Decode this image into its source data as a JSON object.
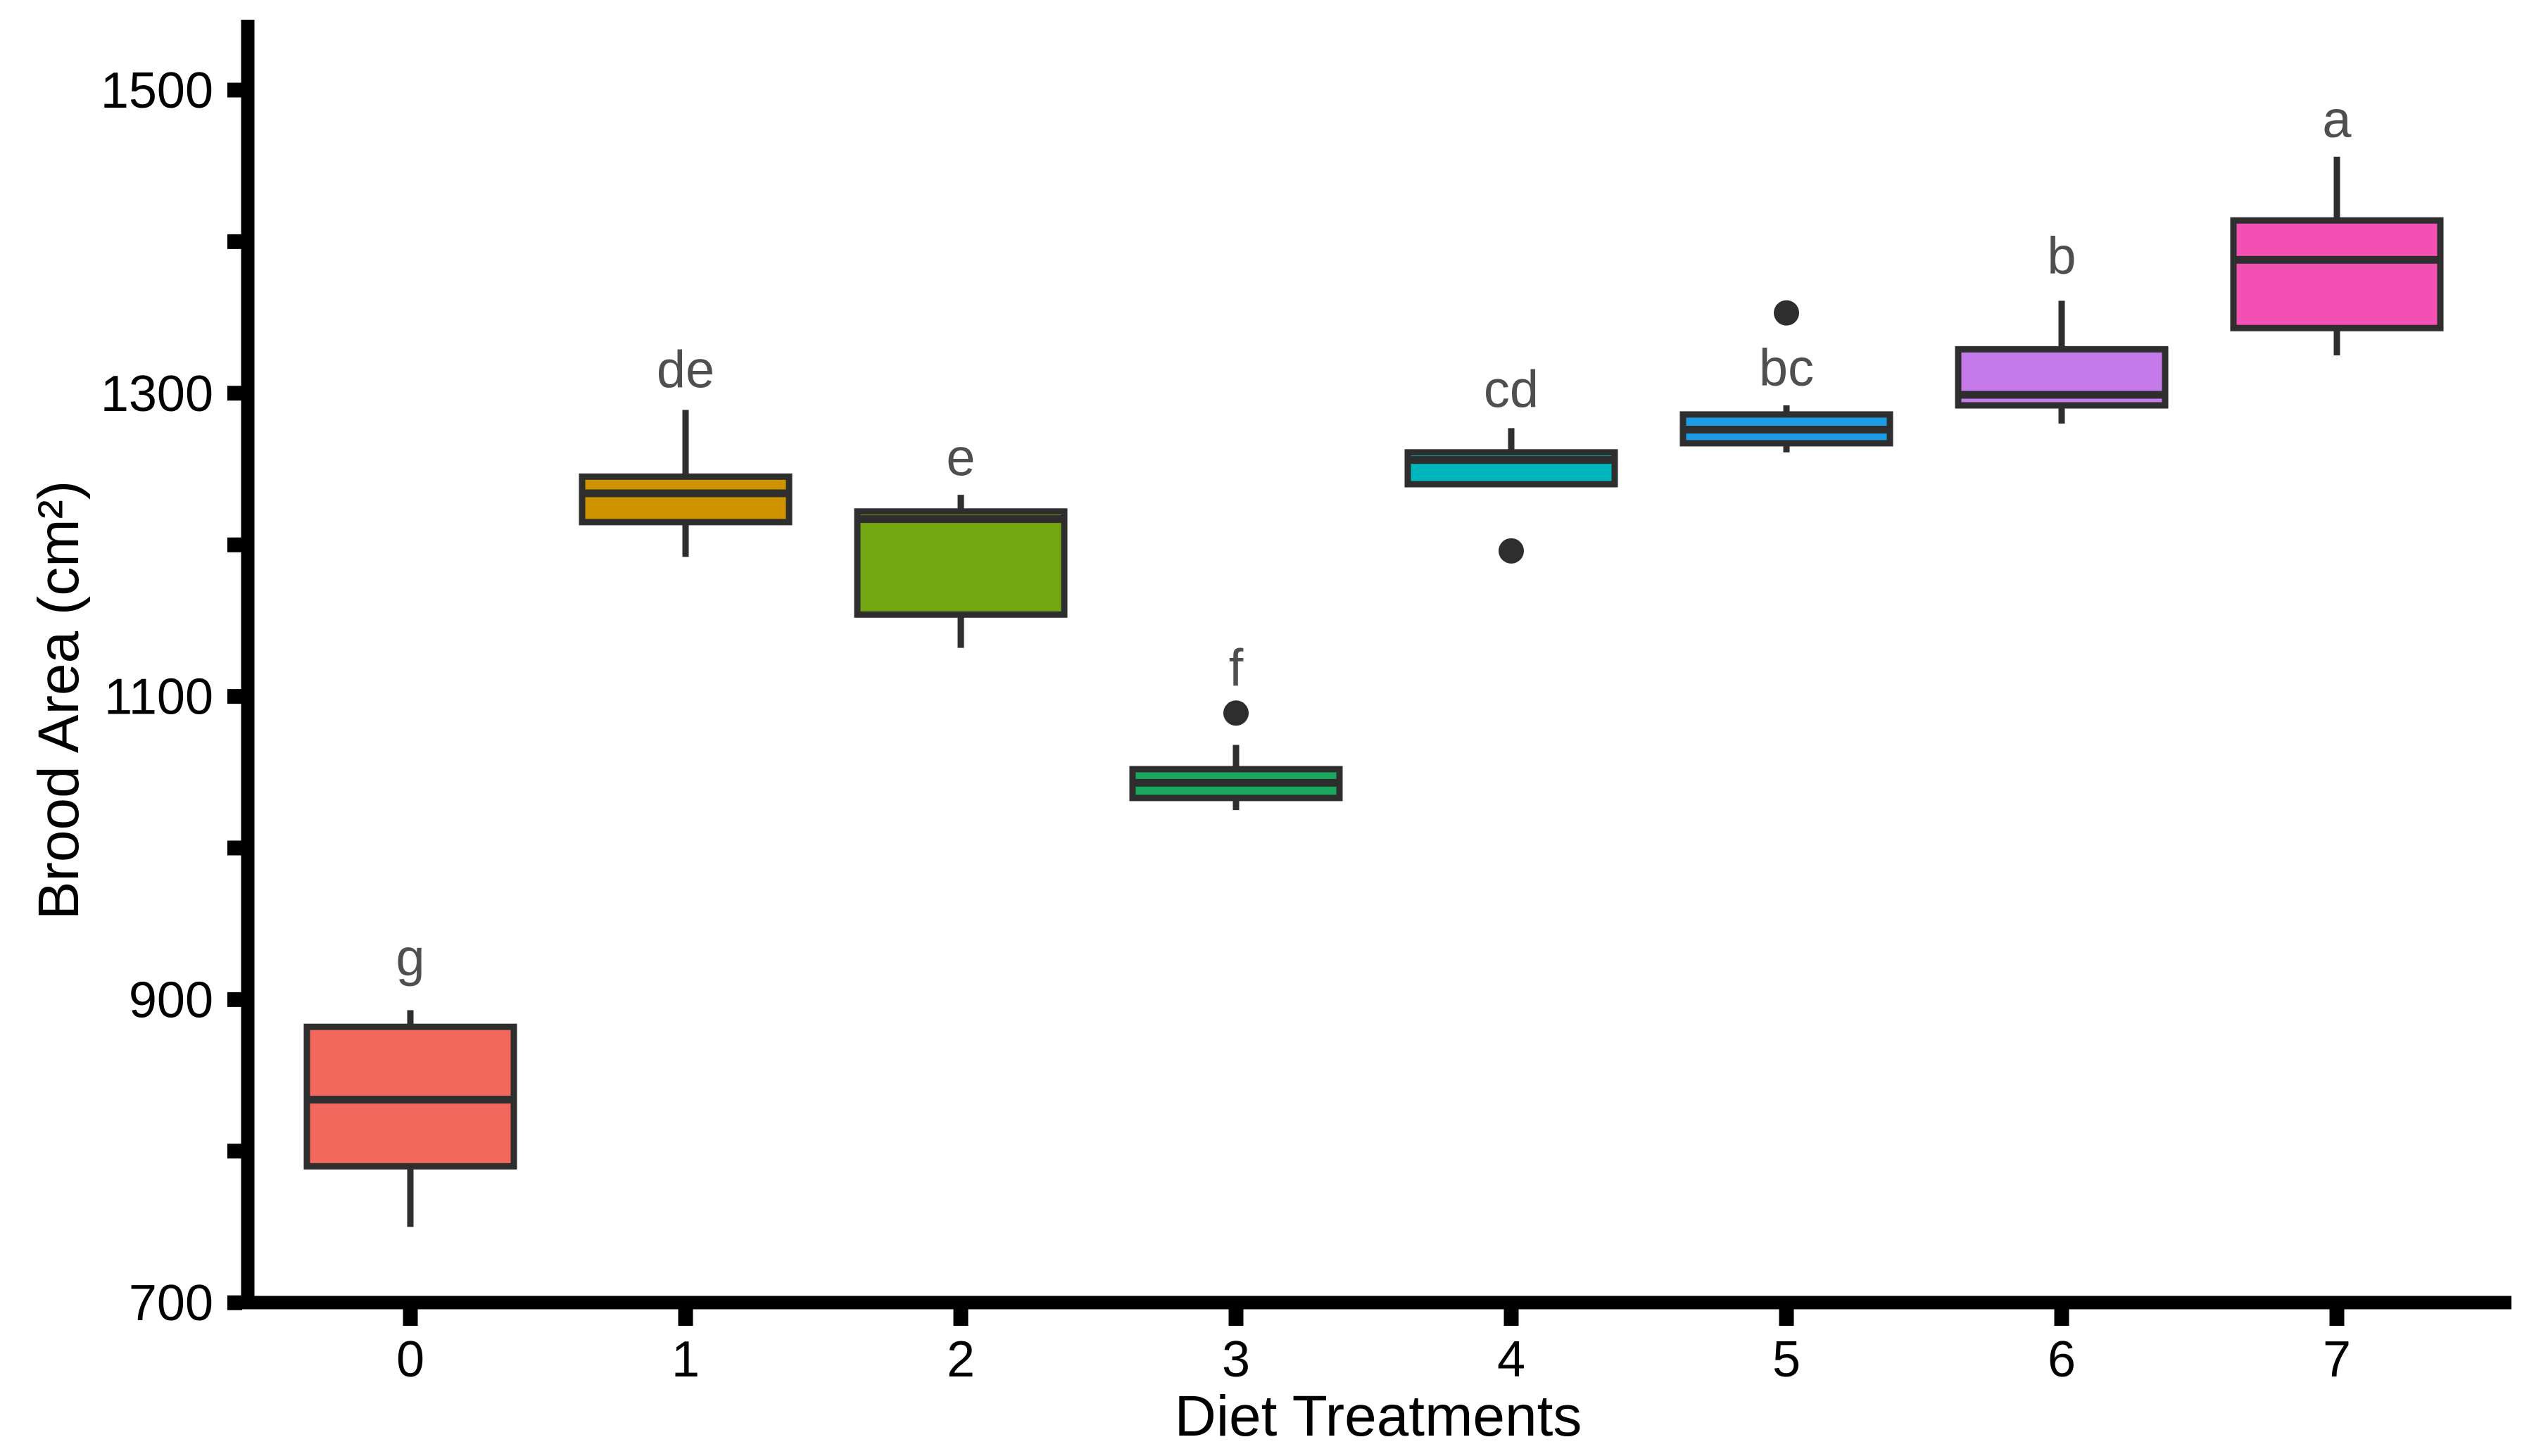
{
  "figure": {
    "background": "#ffffff",
    "axis_color": "#000000",
    "box_border_color": "#2e2e2e",
    "median_color": "#2e2e2e",
    "whisker_color": "#2e2e2e",
    "outlier_color": "#2e2e2e",
    "sig_letter_color": "#4f4f4f",
    "tick_label_color": "#000000"
  },
  "chart_data": {
    "type": "boxplot",
    "title": "",
    "xlabel": "Diet Treatments",
    "ylabel": "Brood Area (cm²)",
    "categories": [
      "0",
      "1",
      "2",
      "3",
      "4",
      "5",
      "6",
      "7"
    ],
    "ylim": [
      700,
      1500
    ],
    "yticks": [
      {
        "value": 1500,
        "label": "1500"
      },
      {
        "value": 1300,
        "label": "1300"
      },
      {
        "value": 1100,
        "label": "1100"
      },
      {
        "value": 900,
        "label": "900"
      },
      {
        "value": 700,
        "label": "700"
      }
    ],
    "yticks_minor": [
      1400,
      1200,
      1000,
      800
    ],
    "grid": "off",
    "legend": "none",
    "series": [
      {
        "category": "0",
        "sig_letter": "g",
        "color": "#f2685c",
        "whisker_low": 750,
        "q1": 790,
        "median": 834,
        "q3": 882,
        "whisker_high": 893,
        "outliers": [],
        "sig_letter_y": 928
      },
      {
        "category": "1",
        "sig_letter": "de",
        "color": "#d09300",
        "whisker_low": 1192,
        "q1": 1215,
        "median": 1234,
        "q3": 1245,
        "whisker_high": 1289,
        "outliers": [],
        "sig_letter_y": 1316
      },
      {
        "category": "2",
        "sig_letter": "e",
        "color": "#72a712",
        "whisker_low": 1132,
        "q1": 1154,
        "median": 1217,
        "q3": 1222,
        "whisker_high": 1233,
        "outliers": [],
        "sig_letter_y": 1258
      },
      {
        "category": "3",
        "sig_letter": "f",
        "color": "#1aa85e",
        "whisker_low": 1025,
        "q1": 1033,
        "median": 1043,
        "q3": 1052,
        "whisker_high": 1068,
        "outliers": [
          1089
        ],
        "sig_letter_y": 1119
      },
      {
        "category": "4",
        "sig_letter": "cd",
        "color": "#00b6bc",
        "whisker_low": 1240,
        "q1": 1240,
        "median": 1256,
        "q3": 1261,
        "whisker_high": 1277,
        "outliers": [
          1196
        ],
        "sig_letter_y": 1303
      },
      {
        "category": "5",
        "sig_letter": "bc",
        "color": "#1d9ce5",
        "whisker_low": 1261,
        "q1": 1267,
        "median": 1276,
        "q3": 1286,
        "whisker_high": 1292,
        "outliers": [
          1353
        ],
        "sig_letter_y": 1317
      },
      {
        "category": "6",
        "sig_letter": "b",
        "color": "#c47ae9",
        "whisker_low": 1280,
        "q1": 1292,
        "median": 1299,
        "q3": 1329,
        "whisker_high": 1361,
        "outliers": [],
        "sig_letter_y": 1391
      },
      {
        "category": "7",
        "sig_letter": "a",
        "color": "#f350b3",
        "whisker_low": 1325,
        "q1": 1343,
        "median": 1388,
        "q3": 1414,
        "whisker_high": 1456,
        "outliers": [],
        "sig_letter_y": 1481
      }
    ]
  }
}
